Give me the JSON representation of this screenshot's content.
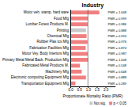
{
  "chart_data": {
    "type": "bar",
    "orientation": "horizontal",
    "stacked": true,
    "title": "Industry",
    "xlabel": "Proportionate Mortality Ratio (PMR)",
    "categories": [
      "Motor veh. stamp. hard ware",
      "Food Mfg",
      "Lumber Forest Products M.",
      "Printing",
      "Chemical Mfg",
      "Rubber Plas tcs Mfg",
      "Fabrication Facilities Mfg",
      "Motor Vey. Body  Interiors Mfg",
      "Primary Metal Metal Back. Production Mfg",
      "Fabricated Metal Products M.",
      "Machinery Mfg",
      "Electronic computing Equipment Mfg",
      "Transportation Equipment Mfg"
    ],
    "series": [
      {
        "name": "Not sig.",
        "color": "#c8c8c8",
        "values": [
          null,
          null,
          null,
          0.888,
          null,
          null,
          null,
          null,
          null,
          null,
          null,
          null,
          null
        ],
        "value_labels": [
          null,
          null,
          null,
          "PMR = 0.888",
          null,
          null,
          null,
          null,
          null,
          null,
          null,
          null,
          null
        ]
      },
      {
        "name": "p < 0.05",
        "color": "#f08080",
        "values": [
          1.648,
          0.999,
          0.986,
          null,
          0.924,
          0.976,
          0.874,
          0.987,
          1.008,
          0.548,
          0.648,
          0.888,
          0.289
        ],
        "value_labels": [
          "PMR = 1.648",
          "PMR = 0.999",
          "PMR = 0.986",
          null,
          "PMR = 0.924",
          "PMR = 0.976",
          "PMR = 0.874",
          "PMR = 0.987",
          "PMR = 1.008",
          "PMR = 0.548",
          "PMR = 0.648",
          "PMR = 0.888",
          "PMR = 0.289"
        ]
      }
    ],
    "data_labels": true,
    "reference_line": 1.0,
    "xlim": [
      0.0,
      2.55
    ],
    "xticks": [
      {
        "value": 0.0,
        "label": "0.0"
      },
      0.5,
      {
        "value": 1.0,
        "label": "1.0"
      },
      1.5,
      {
        "value": 2.0,
        "label": "2.0"
      }
    ],
    "grid": false,
    "legend": "lower right"
  }
}
